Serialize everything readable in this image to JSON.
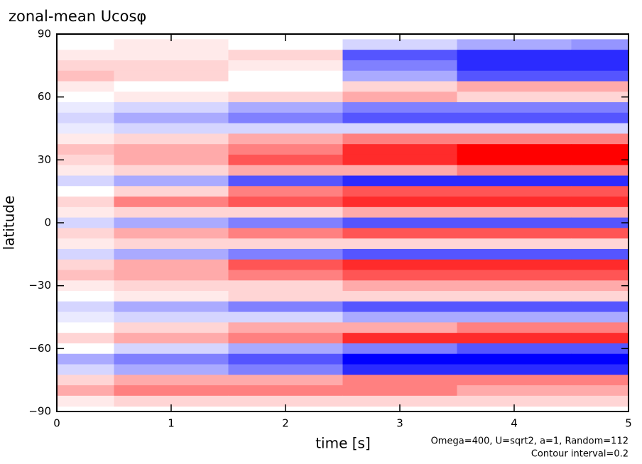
{
  "chart_data": {
    "type": "heatmap",
    "title": "zonal-mean Ucosφ",
    "x_label": "time [s]",
    "y_label": "latitude",
    "notes": [
      "Omega=400, U=sqrt2, a=1, Random=112",
      "Contour interval=0.2"
    ],
    "x": [
      0,
      1,
      2,
      3,
      4,
      5
    ],
    "y": [
      85,
      80,
      75,
      70,
      65,
      60,
      55,
      50,
      45,
      40,
      35,
      30,
      25,
      20,
      15,
      10,
      5,
      0,
      -5,
      -10,
      -15,
      -20,
      -25,
      -30,
      -35,
      -40,
      -45,
      -50,
      -55,
      -60,
      -65,
      -70,
      -75,
      -80,
      -85
    ],
    "values": [
      [
        0.0,
        0.2,
        0.0,
        -0.4,
        -0.8,
        -1.0
      ],
      [
        0.2,
        0.2,
        0.4,
        -1.6,
        -2.0,
        -2.0
      ],
      [
        0.4,
        0.4,
        0.2,
        -1.2,
        -2.0,
        -2.0
      ],
      [
        0.6,
        0.4,
        0.0,
        -0.8,
        -1.6,
        -1.6
      ],
      [
        0.2,
        0.0,
        0.0,
        0.4,
        0.8,
        0.8
      ],
      [
        0.0,
        0.2,
        0.4,
        0.8,
        0.4,
        0.4
      ],
      [
        -0.2,
        -0.4,
        -0.8,
        -1.2,
        -1.2,
        -1.2
      ],
      [
        -0.4,
        -0.8,
        -1.2,
        -1.6,
        -1.6,
        -1.6
      ],
      [
        -0.2,
        -0.4,
        -0.4,
        -0.4,
        -0.4,
        -0.4
      ],
      [
        0.2,
        0.4,
        0.8,
        1.2,
        1.2,
        1.2
      ],
      [
        0.6,
        0.8,
        1.2,
        2.0,
        2.4,
        2.4
      ],
      [
        0.4,
        0.8,
        1.6,
        2.0,
        2.4,
        2.4
      ],
      [
        0.2,
        0.4,
        0.8,
        0.8,
        1.2,
        1.2
      ],
      [
        -0.4,
        -0.8,
        -1.6,
        -2.0,
        -2.0,
        -2.0
      ],
      [
        0.0,
        0.4,
        1.2,
        1.6,
        1.6,
        1.6
      ],
      [
        0.4,
        1.2,
        1.6,
        2.0,
        2.0,
        2.0
      ],
      [
        0.2,
        0.4,
        0.4,
        0.8,
        0.8,
        0.8
      ],
      [
        -0.4,
        -0.8,
        -1.2,
        -1.6,
        -1.6,
        -1.6
      ],
      [
        0.4,
        0.8,
        1.2,
        1.6,
        1.6,
        1.6
      ],
      [
        0.2,
        0.4,
        0.4,
        0.4,
        0.4,
        0.4
      ],
      [
        -0.4,
        -0.8,
        -1.2,
        -1.6,
        -1.6,
        -1.6
      ],
      [
        0.4,
        0.8,
        1.6,
        2.0,
        2.0,
        2.0
      ],
      [
        0.6,
        0.8,
        1.2,
        1.6,
        1.6,
        1.6
      ],
      [
        0.2,
        0.4,
        0.4,
        0.8,
        0.8,
        0.8
      ],
      [
        0.0,
        0.2,
        0.4,
        0.4,
        0.4,
        0.4
      ],
      [
        -0.4,
        -0.8,
        -1.2,
        -1.6,
        -1.6,
        -1.6
      ],
      [
        -0.2,
        -0.4,
        -0.4,
        -0.8,
        -0.8,
        -0.8
      ],
      [
        0.0,
        0.4,
        0.8,
        0.8,
        1.2,
        1.2
      ],
      [
        0.4,
        0.8,
        1.2,
        2.0,
        2.0,
        2.0
      ],
      [
        0.0,
        -0.4,
        -0.8,
        -1.2,
        -1.6,
        -1.6
      ],
      [
        -0.8,
        -1.2,
        -1.6,
        -2.4,
        -2.4,
        -2.4
      ],
      [
        -0.4,
        -0.8,
        -1.2,
        -2.0,
        -2.0,
        -2.0
      ],
      [
        0.4,
        0.8,
        0.8,
        1.2,
        1.2,
        1.2
      ],
      [
        0.8,
        1.2,
        1.2,
        1.2,
        0.8,
        0.8
      ],
      [
        0.2,
        0.4,
        0.4,
        0.4,
        0.4,
        0.4
      ]
    ],
    "colors": {
      "negative": "#0000ff",
      "zero": "#ffffff",
      "positive": "#ff0000"
    },
    "xlim": [
      0,
      5
    ],
    "ylim": [
      -90,
      90
    ],
    "xticks": [
      0,
      1,
      2,
      3,
      4,
      5
    ],
    "yticks": [
      {
        "value": -90,
        "label": "−90"
      },
      {
        "value": -60,
        "label": "−60"
      },
      {
        "value": -30,
        "label": "−30"
      },
      0,
      30,
      60,
      90
    ]
  }
}
